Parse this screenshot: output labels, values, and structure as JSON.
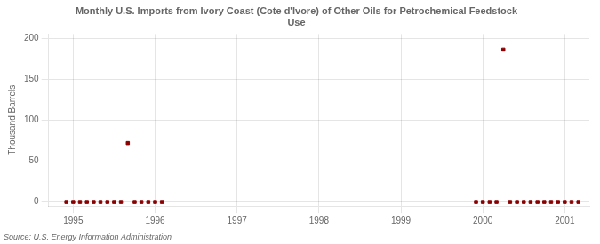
{
  "chart_data": {
    "type": "scatter",
    "title": [
      "Monthly U.S. Imports from Ivory Coast (Cote d'Ivore) of Other Oils for Petrochemical Feedstock",
      "Use"
    ],
    "ylabel": "Thousand Barrels",
    "annotations": [
      "Source: U.S. Energy Information Administration"
    ],
    "x": [
      1994.917,
      1995.0,
      1995.083,
      1995.167,
      1995.25,
      1995.333,
      1995.417,
      1995.5,
      1995.583,
      1995.667,
      1995.75,
      1995.833,
      1995.917,
      1996.0,
      1996.083,
      1999.917,
      2000.0,
      2000.083,
      2000.167,
      2000.25,
      2000.333,
      2000.417,
      2000.5,
      2000.583,
      2000.667,
      2000.75,
      2000.833,
      2000.917,
      2001.0,
      2001.083,
      2001.167
    ],
    "values": [
      0,
      0,
      0,
      0,
      0,
      0,
      0,
      0,
      0,
      72,
      0,
      0,
      0,
      0,
      0,
      0,
      0,
      0,
      0,
      186,
      0,
      0,
      0,
      0,
      0,
      0,
      0,
      0,
      0,
      0,
      0
    ],
    "color": "#8b0000",
    "marker": "square",
    "xlim": [
      1994.7,
      2001.3
    ],
    "ylim": [
      -5,
      205
    ],
    "xticks": [
      1995,
      1996,
      1997,
      1998,
      1999,
      2000,
      2001
    ],
    "yticks": [
      0,
      50,
      100,
      150,
      200
    ],
    "grid": true
  }
}
